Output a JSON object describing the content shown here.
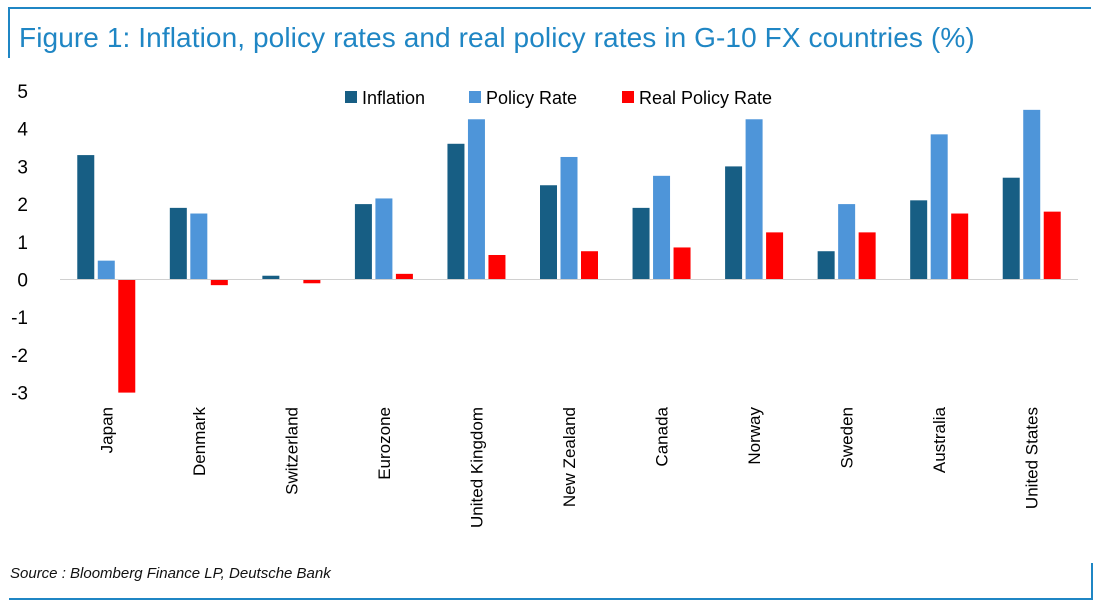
{
  "header": {
    "title": "Figure 1: Inflation, policy rates and real policy rates in G-10 FX countries (%)"
  },
  "footer": {
    "source": "Source : Bloomberg Finance LP, Deutsche Bank"
  },
  "colors": {
    "frame": "#1f86c4",
    "title": "#1f86c4"
  },
  "chart_data": {
    "type": "bar",
    "title": "Figure 1: Inflation, policy rates and real policy rates in G-10 FX countries (%)",
    "xlabel": "",
    "ylabel": "",
    "ylim": [
      -3,
      5
    ],
    "yticks": [
      5,
      4,
      3,
      2,
      1,
      0,
      -1,
      -2,
      -3
    ],
    "grid": false,
    "legend_position": "top-center",
    "categories": [
      "Japan",
      "Denmark",
      "Switzerland",
      "Eurozone",
      "United Kingdom",
      "New Zealand",
      "Canada",
      "Norway",
      "Sweden",
      "Australia",
      "United States"
    ],
    "series": [
      {
        "name": "Inflation",
        "color": "#175e84",
        "values": [
          3.3,
          1.9,
          0.1,
          2.0,
          3.6,
          2.5,
          1.9,
          3.0,
          0.75,
          2.1,
          2.7
        ]
      },
      {
        "name": "Policy Rate",
        "color": "#4e95d9",
        "values": [
          0.5,
          1.75,
          0.0,
          2.15,
          4.25,
          3.25,
          2.75,
          4.25,
          2.0,
          3.85,
          4.5
        ]
      },
      {
        "name": "Real Policy Rate",
        "color": "#ff0000",
        "values": [
          -3.0,
          -0.15,
          -0.1,
          0.15,
          0.65,
          0.75,
          0.85,
          1.25,
          1.25,
          1.75,
          1.8
        ]
      }
    ]
  }
}
